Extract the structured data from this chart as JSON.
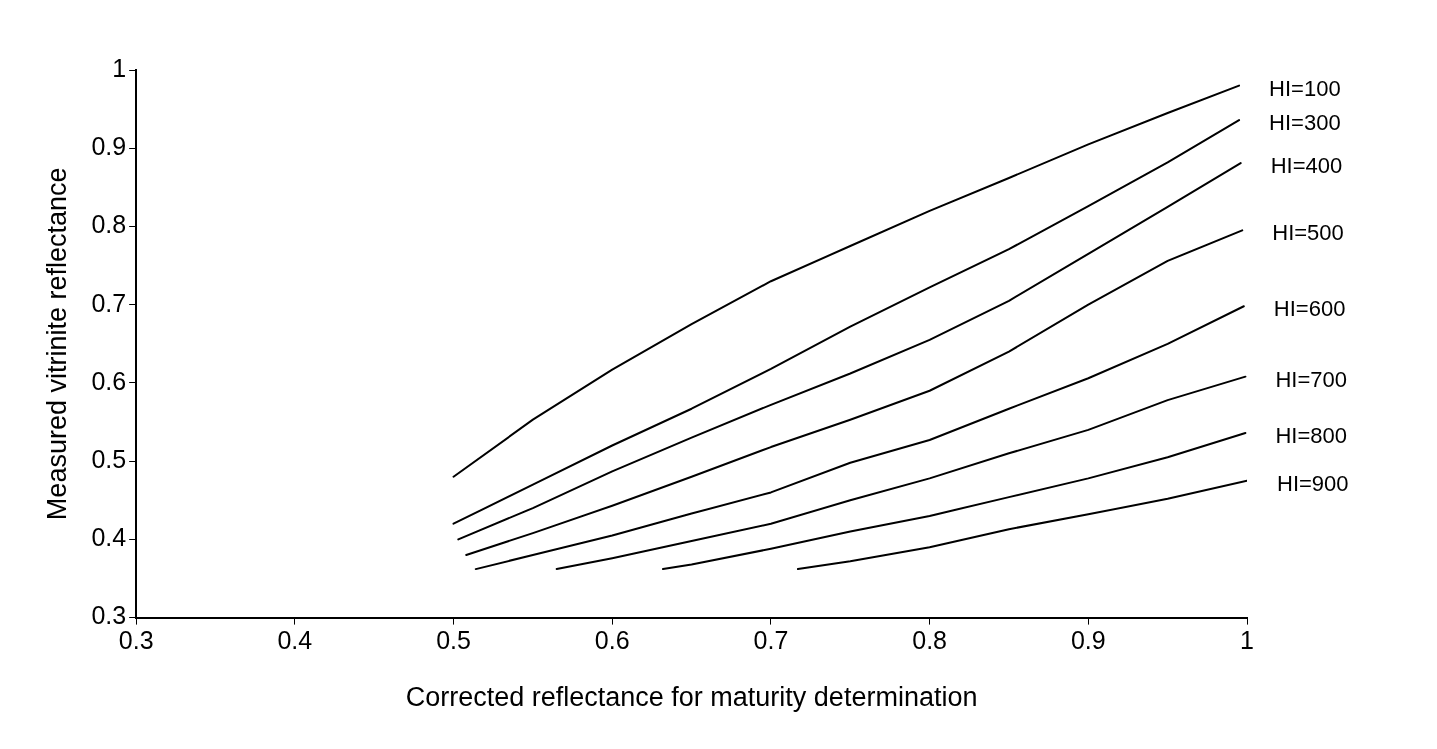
{
  "chart_data": {
    "type": "line",
    "xlabel": "Corrected reflectance for maturity determination",
    "ylabel": "Measured vitrinite reflectance",
    "xlim": [
      0.3,
      1
    ],
    "ylim": [
      0.3,
      1
    ],
    "xticks": [
      0.3,
      0.4,
      0.5,
      0.6,
      0.7,
      0.8,
      0.9,
      1
    ],
    "yticks": [
      0.3,
      0.4,
      0.5,
      0.6,
      0.7,
      0.8,
      0.9,
      1
    ],
    "grid": false,
    "legend": false,
    "marker": "none",
    "line_style": "solid",
    "series": [
      {
        "name": "HI=100",
        "color": "#000000",
        "x": [
          0.5,
          0.55,
          0.6,
          0.65,
          0.7,
          0.75,
          0.8,
          0.85,
          0.9,
          0.95,
          0.995
        ],
        "values": [
          0.48,
          0.553,
          0.617,
          0.675,
          0.73,
          0.775,
          0.82,
          0.862,
          0.905,
          0.945,
          0.98
        ]
      },
      {
        "name": "HI=300",
        "color": "#000000",
        "x": [
          0.5,
          0.55,
          0.6,
          0.65,
          0.7,
          0.75,
          0.8,
          0.85,
          0.9,
          0.95,
          0.995
        ],
        "values": [
          0.42,
          0.47,
          0.52,
          0.567,
          0.618,
          0.672,
          0.722,
          0.771,
          0.826,
          0.882,
          0.936
        ]
      },
      {
        "name": "HI=400",
        "color": "#000000",
        "x": [
          0.503,
          0.55,
          0.6,
          0.65,
          0.7,
          0.75,
          0.8,
          0.85,
          0.9,
          0.95,
          0.996
        ],
        "values": [
          0.4,
          0.44,
          0.487,
          0.53,
          0.572,
          0.612,
          0.655,
          0.705,
          0.765,
          0.825,
          0.881
        ]
      },
      {
        "name": "HI=500",
        "color": "#000000",
        "x": [
          0.508,
          0.55,
          0.6,
          0.65,
          0.7,
          0.75,
          0.8,
          0.85,
          0.9,
          0.95,
          0.997
        ],
        "values": [
          0.38,
          0.408,
          0.443,
          0.48,
          0.518,
          0.553,
          0.59,
          0.64,
          0.7,
          0.756,
          0.795
        ]
      },
      {
        "name": "HI=600",
        "color": "#000000",
        "x": [
          0.514,
          0.55,
          0.6,
          0.65,
          0.7,
          0.75,
          0.8,
          0.85,
          0.9,
          0.95,
          0.998
        ],
        "values": [
          0.362,
          0.38,
          0.405,
          0.433,
          0.46,
          0.498,
          0.527,
          0.567,
          0.606,
          0.65,
          0.698
        ]
      },
      {
        "name": "HI=700",
        "color": "#000000",
        "x": [
          0.565,
          0.6,
          0.65,
          0.7,
          0.75,
          0.8,
          0.85,
          0.9,
          0.95,
          0.999
        ],
        "values": [
          0.362,
          0.376,
          0.398,
          0.42,
          0.45,
          0.478,
          0.51,
          0.54,
          0.578,
          0.608
        ]
      },
      {
        "name": "HI=800",
        "color": "#000000",
        "x": [
          0.632,
          0.65,
          0.7,
          0.75,
          0.8,
          0.85,
          0.9,
          0.95,
          0.999
        ],
        "values": [
          0.362,
          0.368,
          0.388,
          0.41,
          0.43,
          0.454,
          0.478,
          0.505,
          0.536
        ]
      },
      {
        "name": "HI=900",
        "color": "#000000",
        "x": [
          0.717,
          0.75,
          0.8,
          0.85,
          0.9,
          0.95,
          1
        ],
        "values": [
          0.362,
          0.372,
          0.39,
          0.413,
          0.432,
          0.452,
          0.475
        ]
      }
    ]
  }
}
